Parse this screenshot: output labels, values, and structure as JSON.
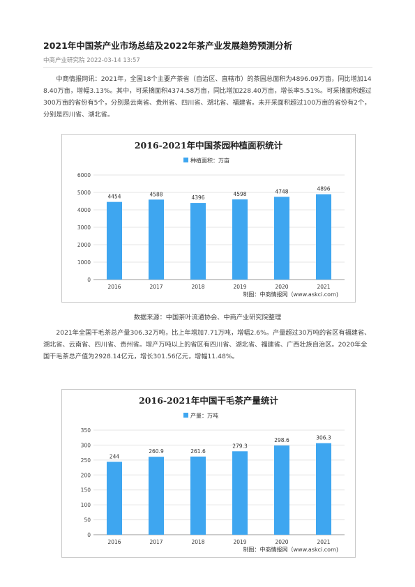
{
  "article": {
    "title": "2021年中国茶产业市场总结及2022年茶产业发展趋势预测分析",
    "author": "中商产业研究院",
    "date": "2022-03-14 13:57",
    "paragraph1": "中商情报网讯：2021年，全国18个主要产茶省（自治区、直辖市）的茶园总面积为4896.09万亩，同比增加148.40万亩，增幅3.13%。其中，可采摘面积4374.58万亩，同比增加228.40万亩，增长率5.51%。可采摘面积超过300万亩的省份有5个，分别是云南省、贵州省、四川省、湖北省、福建省。未开采面积超过100万亩的省份有2个，分别是四川省、湖北省。",
    "source": "数据来源：中国茶叶流通协会、中商产业研究院整理",
    "paragraph2": "2021年全国干毛茶总产量306.32万吨，比上年增加7.71万吨，增幅2.6%。产量超过30万吨的省区有福建省、湖北省、云南省、四川省、贵州省。增产万吨以上的省区有四川省、湖北省、福建省、广西壮族自治区。2020年全国干毛茶总产值为2928.14亿元，增长301.56亿元，增幅11.48%。"
  },
  "colors": {
    "bar": "#3ea6f0",
    "grid": "#e5e5e5",
    "axis": "#999999"
  },
  "chart_data": [
    {
      "type": "bar",
      "title": "2016-2021年中国茶园种植面积统计",
      "categories": [
        "2016",
        "2017",
        "2018",
        "2019",
        "2020",
        "2021"
      ],
      "series": [
        {
          "name": "种植面积：万亩",
          "values": [
            4454,
            4588,
            4396,
            4598,
            4748,
            4896
          ]
        }
      ],
      "data_labels": [
        "4454",
        "4588",
        "4396",
        "4598",
        "4748",
        "4896"
      ],
      "yticks": [
        0,
        1000,
        2000,
        3000,
        4000,
        5000,
        6000
      ],
      "ylim": [
        0,
        6000
      ],
      "grid": true,
      "legend": "top-center",
      "footer": "制图：中商情报网（www.askci.com)"
    },
    {
      "type": "bar",
      "title": "2016-2021年中国干毛茶产量统计",
      "categories": [
        "2016",
        "2017",
        "2018",
        "2019",
        "2020",
        "2021"
      ],
      "series": [
        {
          "name": "产量：万吨",
          "values": [
            244,
            260.9,
            261.6,
            279.3,
            298.6,
            306.3
          ]
        }
      ],
      "data_labels": [
        "244",
        "260.9",
        "261.6",
        "279.3",
        "298.6",
        "306.3"
      ],
      "yticks": [
        0,
        50,
        100,
        150,
        200,
        250,
        300,
        350
      ],
      "ylim": [
        0,
        350
      ],
      "grid": true,
      "legend": "top-center",
      "footer": "制图：中商情报网（www.askci.com)"
    }
  ]
}
